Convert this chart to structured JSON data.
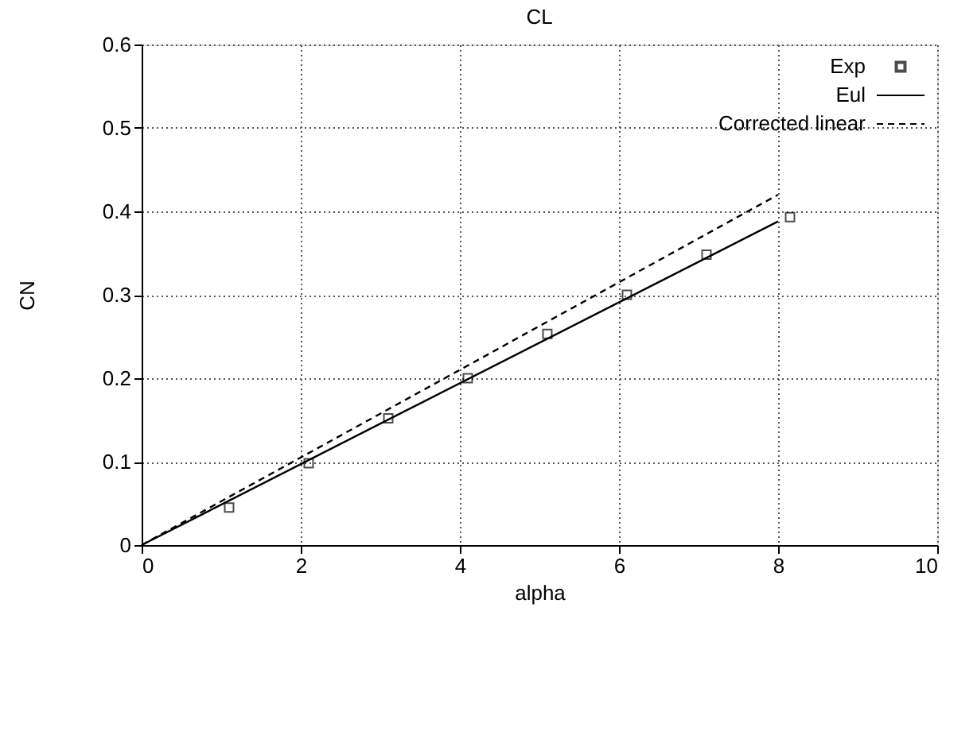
{
  "chart_data": {
    "type": "line",
    "title": "CL",
    "xlabel": "alpha",
    "ylabel": "CN",
    "xlim": [
      0,
      10
    ],
    "ylim": [
      0,
      0.6
    ],
    "xticks": [
      0,
      2,
      4,
      6,
      8,
      10
    ],
    "yticks": [
      0,
      0.1,
      0.2,
      0.3,
      0.4,
      0.5,
      0.6
    ],
    "grid": true,
    "legend": "top right",
    "series": [
      {
        "name": "Exp",
        "type": "scatter",
        "marker": "square",
        "color": "#000000",
        "x": [
          1.1,
          2.1,
          3.1,
          4.1,
          5.1,
          6.1,
          7.1,
          8.15
        ],
        "values": [
          0.045,
          0.098,
          0.152,
          0.2,
          0.253,
          0.3,
          0.348,
          0.393
        ]
      },
      {
        "name": "Eul",
        "line_style": "solid",
        "color": "#000000",
        "x": [
          0,
          8
        ],
        "values": [
          0,
          0.388
        ]
      },
      {
        "name": "Corrected linear",
        "line_style": "dashed",
        "color": "#000000",
        "x": [
          0,
          8
        ],
        "values": [
          0,
          0.42
        ]
      }
    ]
  }
}
